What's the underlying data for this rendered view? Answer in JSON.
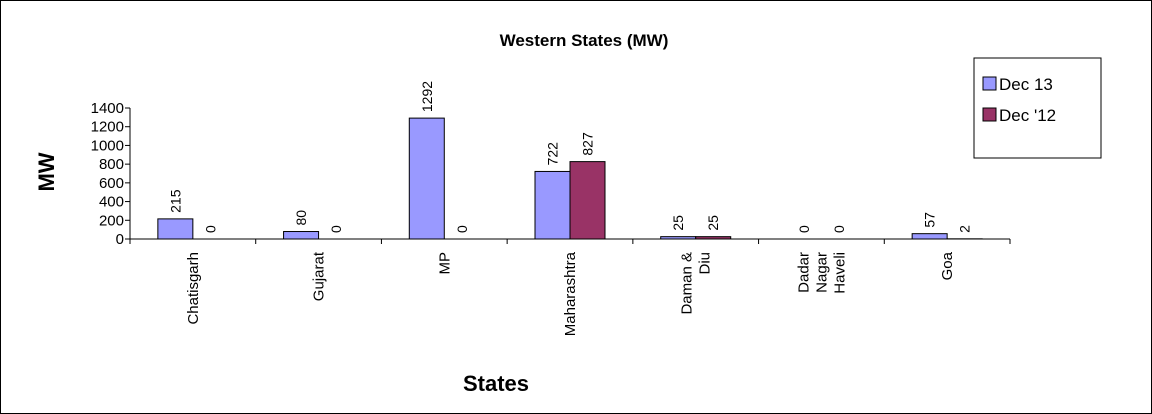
{
  "chart_data": {
    "type": "bar",
    "title": "Western States (MW)",
    "xlabel": "States",
    "ylabel": "MW",
    "ylim": [
      0,
      1400
    ],
    "yticks": [
      0,
      200,
      400,
      600,
      800,
      1000,
      1200,
      1400
    ],
    "categories": [
      [
        "Chatisgarh"
      ],
      [
        "Gujarat"
      ],
      [
        "MP"
      ],
      [
        "Maharashtra"
      ],
      [
        "Daman &",
        "Diu"
      ],
      [
        "Dadar",
        "Nagar",
        "Haveli"
      ],
      [
        "Goa"
      ]
    ],
    "series": [
      {
        "name": "Dec 13",
        "color": "#9999ff",
        "values": [
          215,
          80,
          1292,
          722,
          25,
          0,
          57
        ]
      },
      {
        "name": "Dec '12",
        "color": "#993366",
        "values": [
          0,
          0,
          0,
          827,
          25,
          0,
          2
        ]
      }
    ],
    "legend_position": "top-right",
    "grid": false
  }
}
